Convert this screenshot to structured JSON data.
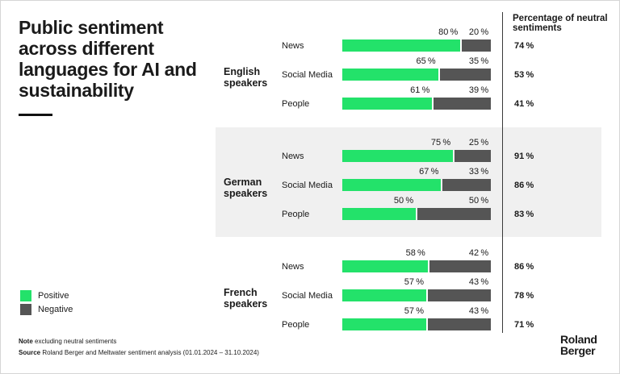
{
  "title": "Public sentiment across different languages for AI and sustainability",
  "neutral_header": "Percentage of neutral sentiments",
  "legend": [
    {
      "label": "Positive",
      "color": "#23e26a"
    },
    {
      "label": "Negative",
      "color": "#555555"
    }
  ],
  "note": {
    "prefix": "Note",
    "text": "excluding neutral sentiments"
  },
  "source": {
    "prefix": "Source",
    "text": "Roland Berger and Meltwater sentiment analysis (01.01.2024 – 31.10.2024)"
  },
  "logo": {
    "line1": "Roland",
    "line2": "Berger"
  },
  "chart_data": {
    "type": "bar",
    "stacked": true,
    "orientation": "horizontal",
    "title": "Public sentiment across different languages for AI and sustainability",
    "unit": "%",
    "xlim": [
      0,
      100
    ],
    "series_colors": {
      "Positive": "#23e26a",
      "Negative": "#555555"
    },
    "groups": [
      {
        "name": "English speakers",
        "rows": [
          {
            "label": "News",
            "positive": 80,
            "negative": 20,
            "neutral": 74
          },
          {
            "label": "Social Media",
            "positive": 65,
            "negative": 35,
            "neutral": 53
          },
          {
            "label": "People",
            "positive": 61,
            "negative": 39,
            "neutral": 41
          }
        ]
      },
      {
        "name": "German speakers",
        "rows": [
          {
            "label": "News",
            "positive": 75,
            "negative": 25,
            "neutral": 91
          },
          {
            "label": "Social Media",
            "positive": 67,
            "negative": 33,
            "neutral": 86
          },
          {
            "label": "People",
            "positive": 50,
            "negative": 50,
            "neutral": 83
          }
        ]
      },
      {
        "name": "French speakers",
        "rows": [
          {
            "label": "News",
            "positive": 58,
            "negative": 42,
            "neutral": 86
          },
          {
            "label": "Social Media",
            "positive": 57,
            "negative": 43,
            "neutral": 78
          },
          {
            "label": "People",
            "positive": 57,
            "negative": 43,
            "neutral": 71
          }
        ]
      }
    ]
  }
}
